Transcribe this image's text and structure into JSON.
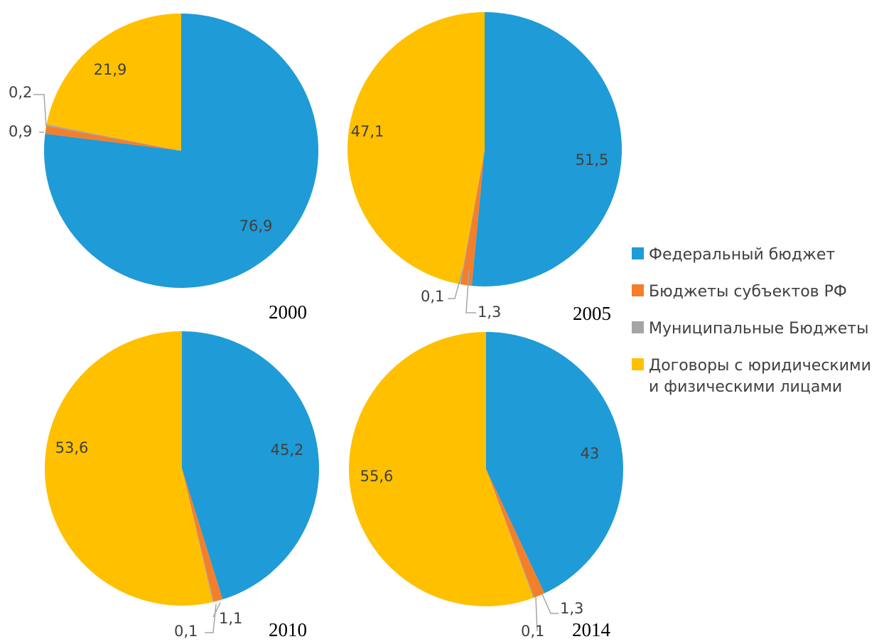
{
  "legend": {
    "position": "right",
    "items": [
      {
        "label": "Федеральный бюджет",
        "color": "#1f9bd7"
      },
      {
        "label": "Бюджеты субъектов РФ",
        "color": "#f47f2a"
      },
      {
        "label": "Муниципальные Бюджеты",
        "color": "#a5a5a5"
      },
      {
        "label": "Договоры с юридическими\nи физическими лицами",
        "color": "#ffc000"
      }
    ]
  },
  "chart_data": [
    {
      "type": "pie",
      "title": "2000",
      "categories": [
        "Федеральный бюджет",
        "Бюджеты субъектов РФ",
        "Муниципальные Бюджеты",
        "Договоры с юридическими и физическими лицами"
      ],
      "values": [
        76.9,
        0.9,
        0.2,
        21.9
      ],
      "labels": [
        "76,9",
        "0,9",
        "0,2",
        "21,9"
      ]
    },
    {
      "type": "pie",
      "title": "2005",
      "categories": [
        "Федеральный бюджет",
        "Бюджеты субъектов РФ",
        "Муниципальные Бюджеты",
        "Договоры с юридическими и физическими лицами"
      ],
      "values": [
        51.5,
        1.3,
        0.1,
        47.1
      ],
      "labels": [
        "51,5",
        "1,3",
        "0,1",
        "47,1"
      ]
    },
    {
      "type": "pie",
      "title": "2010",
      "categories": [
        "Федеральный бюджет",
        "Бюджеты субъектов РФ",
        "Муниципальные Бюджеты",
        "Договоры с юридическими и физическими лицами"
      ],
      "values": [
        45.2,
        1.1,
        0.1,
        53.6
      ],
      "labels": [
        "45,2",
        "1,1",
        "0,1",
        "53,6"
      ]
    },
    {
      "type": "pie",
      "title": "2014",
      "categories": [
        "Федеральный бюджет",
        "Бюджеты субъектов РФ",
        "Муниципальные Бюджеты",
        "Договоры с юридическими и физическими лицами"
      ],
      "values": [
        43,
        1.3,
        0.1,
        55.6
      ],
      "labels": [
        "43",
        "1,3",
        "0,1",
        "55,6"
      ]
    }
  ]
}
